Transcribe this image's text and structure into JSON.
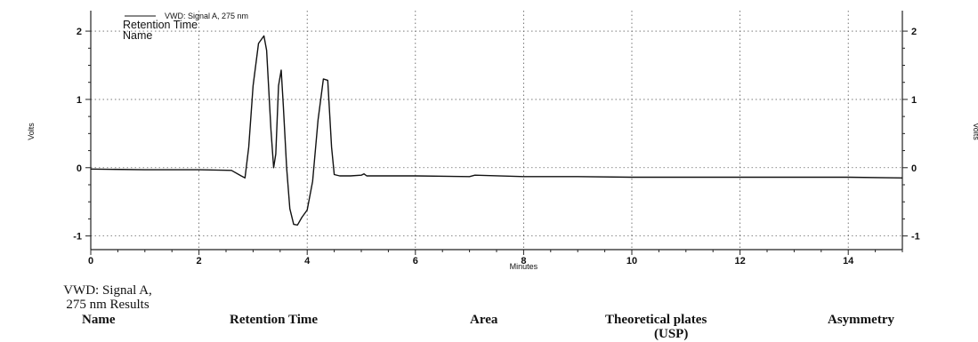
{
  "chart_data": {
    "type": "line",
    "xlabel": "Minutes",
    "ylabel": "Volts",
    "right_ylabel": "Volts",
    "xlim": [
      0,
      15
    ],
    "ylim": [
      -1.2,
      2.3
    ],
    "x_ticks": [
      0,
      2,
      4,
      6,
      8,
      10,
      12,
      14
    ],
    "y_ticks": [
      -1,
      0,
      1,
      2
    ],
    "grid": true,
    "legend": {
      "placement": "top-left",
      "entry": "VWD: Signal A, 275 nm",
      "lines": [
        "Retention Time",
        "Name"
      ]
    },
    "series": [
      {
        "name": "VWD: Signal A, 275 nm",
        "x": [
          0,
          1,
          2,
          2.6,
          2.78,
          2.85,
          2.92,
          3.0,
          3.1,
          3.2,
          3.25,
          3.33,
          3.38,
          3.42,
          3.47,
          3.52,
          3.56,
          3.62,
          3.68,
          3.75,
          3.82,
          3.9,
          4.0,
          4.1,
          4.2,
          4.3,
          4.38,
          4.45,
          4.5,
          4.6,
          4.8,
          5.0,
          5.05,
          5.1,
          5.5,
          6,
          7,
          7.1,
          8,
          9,
          10,
          11,
          12,
          13,
          14,
          15
        ],
        "y": [
          -0.02,
          -0.03,
          -0.03,
          -0.04,
          -0.12,
          -0.15,
          0.3,
          1.2,
          1.82,
          1.93,
          1.72,
          0.55,
          0.0,
          0.2,
          1.2,
          1.43,
          0.9,
          0.0,
          -0.6,
          -0.83,
          -0.84,
          -0.73,
          -0.62,
          -0.2,
          0.7,
          1.3,
          1.28,
          0.3,
          -0.1,
          -0.12,
          -0.12,
          -0.11,
          -0.09,
          -0.12,
          -0.12,
          -0.12,
          -0.13,
          -0.11,
          -0.13,
          -0.13,
          -0.14,
          -0.14,
          -0.14,
          -0.14,
          -0.14,
          -0.15
        ]
      }
    ]
  },
  "results": {
    "title": "VWD: Signal A,\n275 nm Results",
    "columns": [
      "Name",
      "Retention Time",
      "Area",
      "Theoretical plates",
      "Asymmetry"
    ],
    "columns_sub": [
      "",
      "",
      "",
      "(USP)",
      ""
    ]
  }
}
